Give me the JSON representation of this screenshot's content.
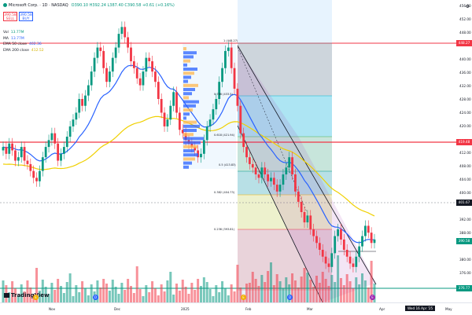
{
  "header": {
    "title": "Microsoft Corp. · 1D · NASDAQ",
    "ohlc": "O390.10 H392.24 L387.40 C390.58 +0.61 (+0.16%)"
  },
  "trade": {
    "sell_price": "390.58",
    "sell_label": "SELL",
    "buy_price": "390.58",
    "buy_label": "BUY"
  },
  "indicators": [
    {
      "label": "Vol",
      "value": "13.77M",
      "color": "#089981"
    },
    {
      "label": "MA",
      "value": "13.77M",
      "color": "#2962ff"
    },
    {
      "label": "EMA 50 close",
      "value": "402.36",
      "color": "#2962ff"
    },
    {
      "label": "EMA 200 close",
      "value": "412.52",
      "color": "#e6c200"
    }
  ],
  "price_axis": {
    "ticks": [
      "456.00",
      "452.00",
      "448.00",
      "444.00",
      "440.00",
      "436.00",
      "432.00",
      "428.00",
      "424.00",
      "420.00",
      "416.00",
      "412.00",
      "408.00",
      "404.00",
      "400.00",
      "396.00",
      "392.00",
      "388.00",
      "384.00",
      "380.00",
      "376.00"
    ],
    "labels": [
      {
        "text": "448.27",
        "color": "#f23645"
      },
      {
        "text": "419.48",
        "color": "#f23645"
      },
      {
        "text": "401.67",
        "color": "#131722"
      },
      {
        "text": "390.58",
        "color": "#089981"
      },
      {
        "text": "376.77",
        "color": "#089981"
      }
    ]
  },
  "time_axis": {
    "ticks": [
      "Nov",
      "Dec",
      "2025",
      "Feb",
      "Mar",
      "Apr",
      "May"
    ],
    "crosshair_label": "Wed 16 Apr '25"
  },
  "fib_levels": [
    "1 (448.27)",
    "0.786 (433.5)",
    "0.618 (421.94)",
    "0.5 (413.83)",
    "0.382 (404.73)",
    "0.236 (393.81)"
  ],
  "logo_text": "TradingView",
  "colors": {
    "up": "#089981",
    "down": "#f23645",
    "ema50": "#2962ff",
    "ema200": "#f0d000"
  }
}
